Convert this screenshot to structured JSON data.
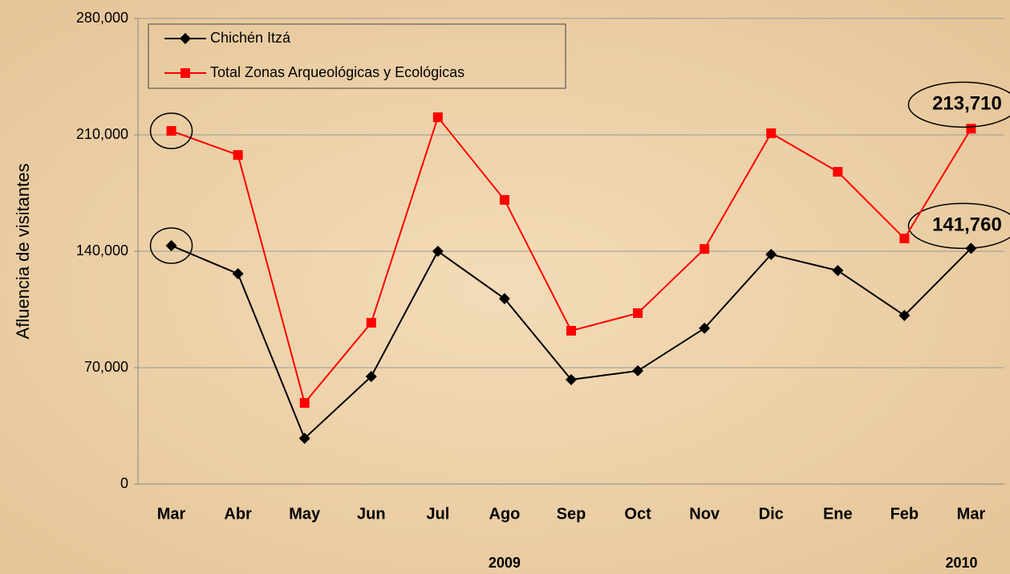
{
  "chart_data": {
    "type": "line",
    "y_label": "Afluencia de visitantes",
    "categories": [
      "Mar",
      "Abr",
      "May",
      "Jun",
      "Jul",
      "Ago",
      "Sep",
      "Oct",
      "Nov",
      "Dic",
      "Ene",
      "Feb",
      "Mar"
    ],
    "year_labels": [
      "2009",
      "2010"
    ],
    "series": [
      {
        "name": "Chichén Itzá",
        "color": "#000000",
        "marker": "diamond",
        "values": [
          143400,
          126500,
          27500,
          64700,
          140000,
          111500,
          62800,
          68100,
          93700,
          138100,
          128400,
          101400,
          141760
        ],
        "value_labels": [
          null,
          null,
          null,
          null,
          null,
          null,
          null,
          null,
          null,
          null,
          null,
          null,
          "141,760"
        ]
      },
      {
        "name": "Total Zonas Arqueológicas y Ecológicas",
        "color": "#ff0000",
        "marker": "square",
        "values": [
          212400,
          197900,
          48800,
          97000,
          220600,
          170900,
          92200,
          102800,
          141400,
          211000,
          187800,
          147700,
          213710
        ],
        "value_labels": [
          null,
          null,
          null,
          null,
          null,
          null,
          null,
          null,
          null,
          null,
          null,
          null,
          "213,710"
        ]
      }
    ],
    "ylim": [
      0,
      280000
    ],
    "yticks": [
      0,
      {
        "value": 70000,
        "label": "70,000"
      },
      {
        "value": 140000,
        "label": "140,000"
      },
      {
        "value": 210000,
        "label": "210,000"
      },
      {
        "value": 280000,
        "label": "280,000"
      }
    ],
    "grid": true,
    "legend": "upper left"
  }
}
